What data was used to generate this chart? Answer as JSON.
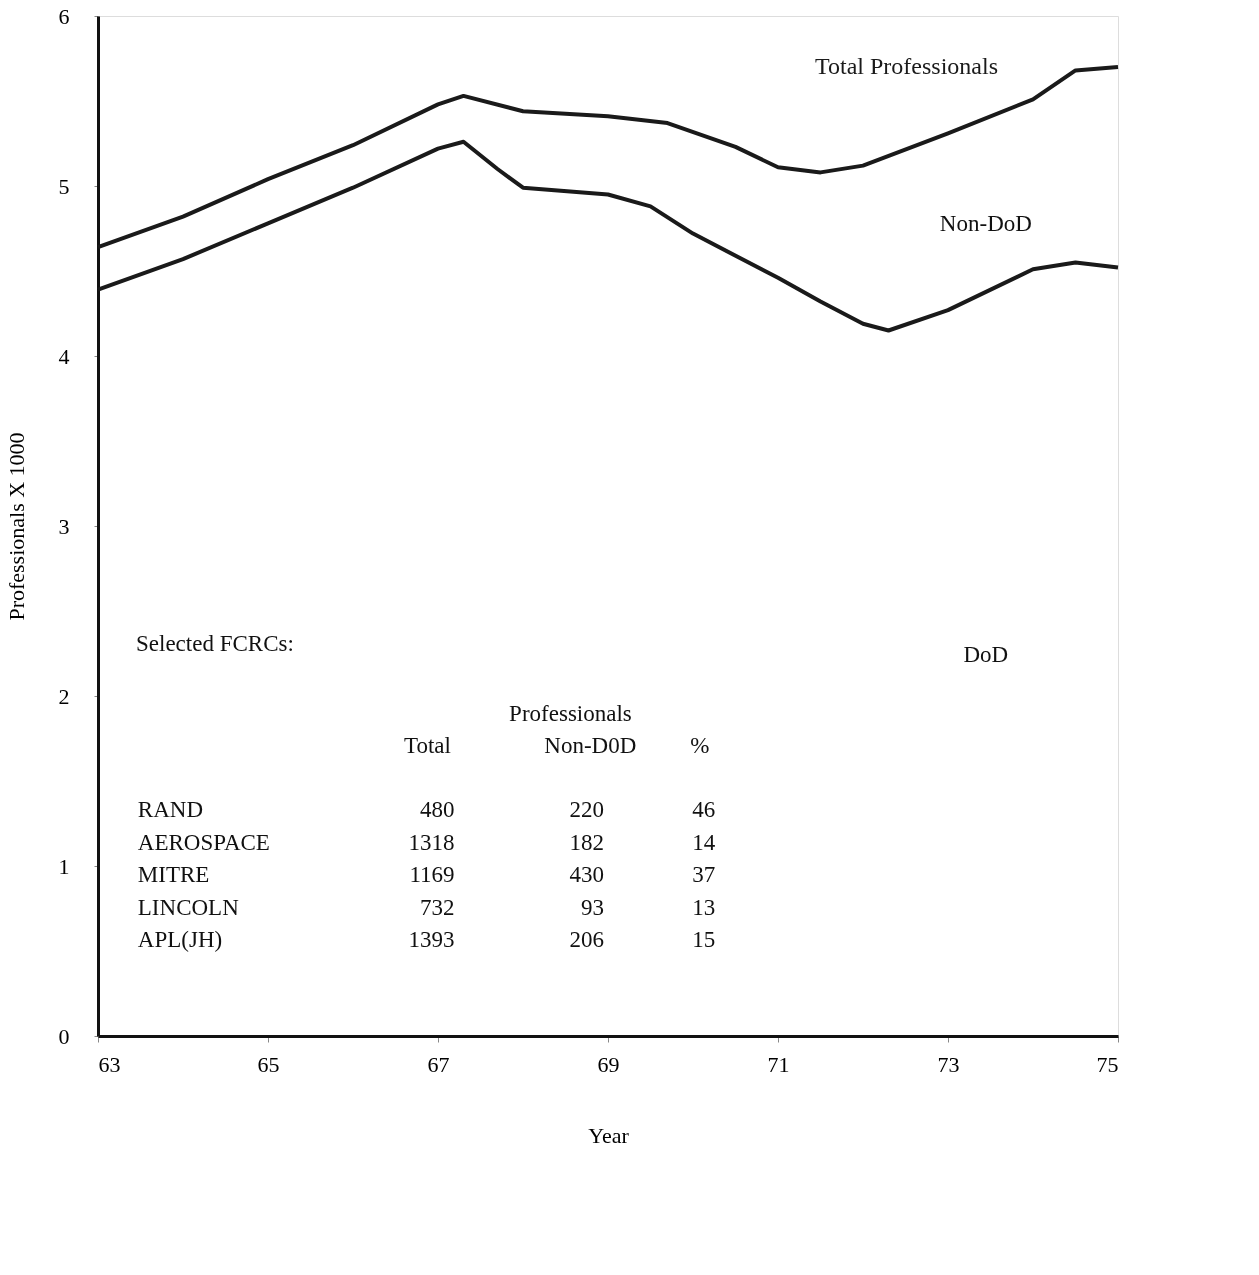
{
  "chart_data": {
    "type": "line",
    "xlabel": "Year",
    "ylabel": "Professionals X 1000",
    "xlim": [
      63,
      75
    ],
    "xticks": [
      63,
      65,
      67,
      69,
      71,
      73,
      75
    ],
    "ylim": [
      0,
      6
    ],
    "yticks": [
      0,
      1,
      2,
      3,
      4,
      5,
      6
    ],
    "grid": false,
    "marker": "none",
    "line_style": "solid",
    "series": [
      {
        "name": "Total Professionals",
        "color": "#1a1a1a",
        "x": [
          63,
          64,
          65,
          66,
          67,
          67.3,
          68,
          69,
          69.7,
          70.5,
          71,
          71.5,
          72,
          73,
          74,
          74.5,
          75
        ],
        "values": [
          4.64,
          4.82,
          5.04,
          5.24,
          5.48,
          5.53,
          5.44,
          5.41,
          5.37,
          5.23,
          5.11,
          5.08,
          5.12,
          5.31,
          5.51,
          5.68,
          5.7
        ]
      },
      {
        "color": "#1a1a1a",
        "x": [
          63,
          64,
          65,
          66,
          67,
          67.3,
          67.7,
          68,
          69,
          69.5,
          70,
          71,
          71.5,
          72,
          72.3,
          73,
          74,
          74.5,
          75
        ],
        "values": [
          4.39,
          4.57,
          4.78,
          4.99,
          5.22,
          5.26,
          5.1,
          4.99,
          4.95,
          4.88,
          4.72,
          4.46,
          4.32,
          4.19,
          4.15,
          4.27,
          4.51,
          4.55,
          4.52
        ]
      }
    ],
    "annotations": [
      "Non-DoD",
      "DoD",
      "Selected FCRCs:",
      "Professionals",
      "Total",
      "Non-D0D",
      "%",
      "RAND",
      "480",
      "220",
      "46",
      "AEROSPACE",
      "1318",
      "182",
      "14",
      "MITRE",
      "1169",
      "430",
      "37",
      "LINCOLN",
      "732",
      "93",
      "13",
      "APL(JH)",
      "1393",
      "206",
      "15"
    ]
  }
}
